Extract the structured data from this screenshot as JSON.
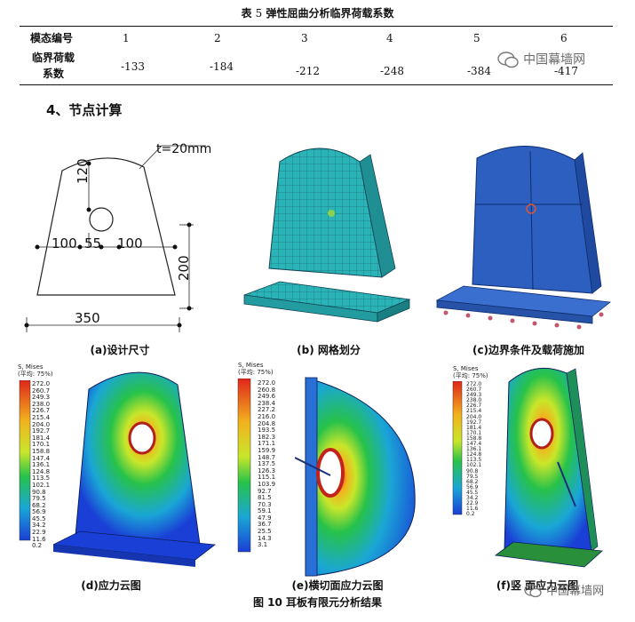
{
  "table": {
    "caption_prefix": "表",
    "caption_num": "5",
    "caption_text": "弹性屈曲分析临界荷载系数",
    "row1_label": "模态编号",
    "row2_label_a": "临界荷载",
    "row2_label_b": "系数",
    "modes": [
      "1",
      "2",
      "3",
      "4",
      "5",
      "6"
    ],
    "values": [
      "-133",
      "-184",
      "-212",
      "-248",
      "-384",
      "-417"
    ]
  },
  "section_title": "4、节点计算",
  "watermark": "中国幕墙网",
  "design": {
    "t_label": "t=20mm",
    "d120": "120",
    "d100a": "100",
    "d55": "55",
    "d100b": "100",
    "d200": "200",
    "d350": "350"
  },
  "subcaptions": {
    "a": "(a)设计尺寸",
    "b": "(b) 网格划分",
    "c": "(c)边界条件及载荷施加",
    "d": "(d)应力云图",
    "e": "(e)横切面应力云图",
    "f": "(f)竖    面应力云图"
  },
  "figure_caption": "图 10  耳板有限元分析结果",
  "legend_e": {
    "title": "S, Mises",
    "subtitle": "(平均: 75%)",
    "values": [
      "272.0",
      "260.8",
      "249.6",
      "238.4",
      "227.2",
      "216.0",
      "204.8",
      "193.5",
      "182.3",
      "171.1",
      "159.9",
      "148.7",
      "137.5",
      "126.3",
      "115.1",
      "103.9",
      "92.7",
      "81.5",
      "70.3",
      "59.1",
      "47.9",
      "36.7",
      "25.5",
      "14.3",
      "3.1"
    ]
  },
  "legend_d": {
    "title": "S, Mises",
    "subtitle": "(平均: 75%)",
    "values": [
      "272.0",
      "260.7",
      "249.3",
      "238.0",
      "226.7",
      "215.4",
      "204.0",
      "192.7",
      "181.4",
      "170.1",
      "158.8",
      "147.4",
      "136.1",
      "124.8",
      "113.5",
      "102.1",
      "90.8",
      "79.5",
      "68.2",
      "56.9",
      "45.5",
      "34.2",
      "22.9",
      "11.6",
      "0.2"
    ]
  },
  "legend_f": {
    "title": "S, Mises",
    "subtitle": "(平均: 75%)",
    "values": [
      "272.0",
      "260.7",
      "249.3",
      "238.0",
      "226.7",
      "215.4",
      "204.0",
      "192.7",
      "181.4",
      "170.1",
      "158.8",
      "147.4",
      "136.1",
      "124.8",
      "113.5",
      "102.1",
      "90.8",
      "79.5",
      "68.2",
      "56.9",
      "45.5",
      "34.2",
      "22.9",
      "11.6",
      "0.2"
    ]
  },
  "colors": {
    "mesh": "#2bb4b8",
    "model_blue": "#2c5fbf",
    "stress_low": "#1a3fd6",
    "stress_mid": "#27c24a",
    "stress_high": "#e0251b"
  }
}
